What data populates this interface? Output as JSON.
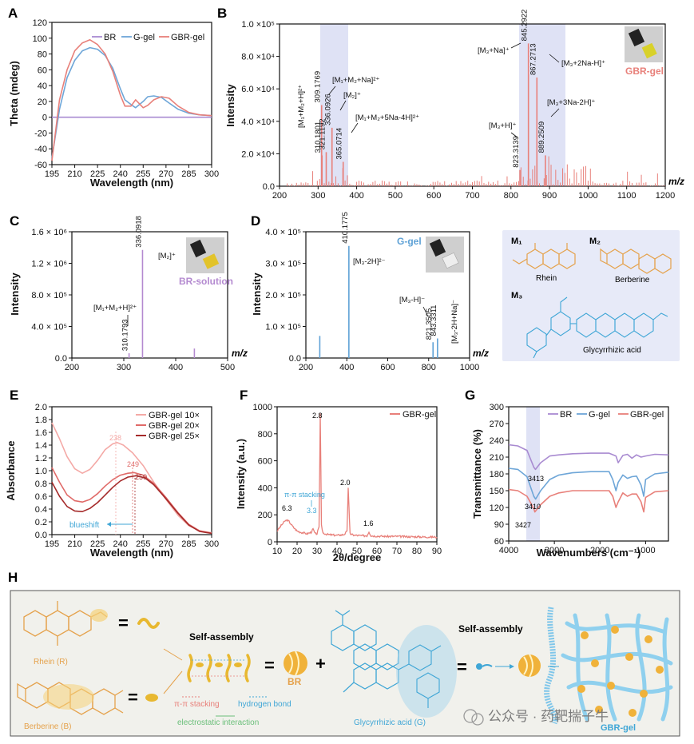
{
  "panels": {
    "A": {
      "label": "A",
      "chart_data": {
        "type": "line",
        "xlabel": "Wavelength (nm)",
        "ylabel": "Theta (mdeg)",
        "xlim": [
          195,
          300
        ],
        "ylim": [
          -60,
          120
        ],
        "xticks": [
          "195",
          "210",
          "225",
          "240",
          "255",
          "270",
          "285",
          "300"
        ],
        "yticks": [
          "-60",
          "-40",
          "-20",
          "0",
          "20",
          "40",
          "60",
          "80",
          "100",
          "120"
        ],
        "legend": [
          "BR",
          "G-gel",
          "GBR-gel"
        ],
        "colors": {
          "BR": "#a98bd1",
          "G-gel": "#6ea6d8",
          "GBR-gel": "#e8807a"
        },
        "series": [
          {
            "name": "BR",
            "x": [
              195,
              300
            ],
            "y": [
              0,
              0
            ]
          },
          {
            "name": "G-gel",
            "x": [
              195,
              200,
              205,
              210,
              215,
              220,
              225,
              230,
              235,
              240,
              243,
              247,
              250,
              255,
              258,
              262,
              267,
              272,
              278,
              285,
              292,
              300
            ],
            "y": [
              -52,
              10,
              50,
              72,
              84,
              88,
              86,
              78,
              62,
              36,
              22,
              16,
              12,
              20,
              26,
              27,
              25,
              18,
              10,
              5,
              3,
              2
            ]
          },
          {
            "name": "GBR-gel",
            "x": [
              195,
              200,
              205,
              210,
              215,
              220,
              225,
              230,
              235,
              240,
              243,
              247,
              250,
              255,
              258,
              262,
              267,
              272,
              278,
              285,
              292,
              300
            ],
            "y": [
              -55,
              22,
              60,
              84,
              94,
              98,
              92,
              80,
              58,
              28,
              14,
              14,
              22,
              12,
              15,
              22,
              26,
              24,
              14,
              6,
              3,
              2
            ]
          }
        ]
      }
    },
    "B": {
      "label": "B",
      "chart_data": {
        "type": "bar",
        "xlabel": "m/z",
        "ylabel": "Intensity",
        "xlim": [
          200,
          1200
        ],
        "ylim": [
          0,
          100000
        ],
        "xticks": [
          "200",
          "300",
          "400",
          "500",
          "600",
          "700",
          "800",
          "900",
          "1000",
          "1100",
          "1200"
        ],
        "yticks": [
          "0.0",
          "2.0 ×10⁴",
          "4.0 ×10⁴",
          "6.0 ×10⁴",
          "8.0 ×10⁴",
          "1.0 ×10⁵"
        ],
        "sample": "GBR-gel",
        "peaks": [
          {
            "mz": 310.1801,
            "y": 19000,
            "label": "310.1801"
          },
          {
            "mz": 309.1769,
            "y": 50000,
            "label": "309.1769"
          },
          {
            "mz": 321.1192,
            "y": 21000,
            "label": "321.1192"
          },
          {
            "mz": 336.0926,
            "y": 36000,
            "label": "336.0926"
          },
          {
            "mz": 365.0714,
            "y": 15000,
            "label": "365.0714"
          },
          {
            "mz": 823.3139,
            "y": 10000,
            "label": "823.3139"
          },
          {
            "mz": 845.2922,
            "y": 88000,
            "label": "845.2922"
          },
          {
            "mz": 867.2713,
            "y": 67000,
            "label": "867.2713"
          },
          {
            "mz": 889.2509,
            "y": 19000,
            "label": "889.2509"
          }
        ],
        "assignments": [
          "[M₁+M₂+H]²⁺",
          "[M₁+M₂+Na]²⁺",
          "[M₂]⁺",
          "[M₁+M₂+5Na-4H]²⁺",
          "[M₃+Na]⁺",
          "[M₃+2Na-H]⁺",
          "[M₃+H]⁺",
          "[M₃+3Na-2H]⁺"
        ],
        "color": "#e8807a"
      }
    },
    "C": {
      "label": "C",
      "chart_data": {
        "type": "bar",
        "xlabel": "m/z",
        "ylabel": "Intensity",
        "xlim": [
          200,
          500
        ],
        "ylim": [
          0,
          1600000
        ],
        "xticks": [
          "200",
          "300",
          "400",
          "500"
        ],
        "yticks": [
          "0.0",
          "4.0 × 10⁵",
          "8.0 × 10⁵",
          "1.2 × 10⁶",
          "1.6 × 10⁶"
        ],
        "sample": "BR-solution",
        "peaks": [
          {
            "mz": 310.1793,
            "y": 60000,
            "label": "310.1793"
          },
          {
            "mz": 336.0918,
            "y": 1370000,
            "label": "336.0918"
          },
          {
            "mz": 436,
            "y": 120000,
            "label": ""
          }
        ],
        "assignments": [
          "[M₂]⁺",
          "[M₁+M₂+H]²⁺"
        ],
        "color": "#b48ad0"
      }
    },
    "D": {
      "label": "D",
      "chart_data": {
        "type": "bar",
        "xlabel": "m/z",
        "ylabel": "Intensity",
        "xlim": [
          200,
          1000
        ],
        "ylim": [
          0,
          400000
        ],
        "xticks": [
          "200",
          "400",
          "600",
          "800",
          "1000"
        ],
        "yticks": [
          "0.0",
          "1.0 × 10⁵",
          "2.0 × 10⁵",
          "3.0 × 10⁵",
          "4.0 × 10⁵"
        ],
        "sample": "G-gel",
        "peaks": [
          {
            "mz": 268,
            "y": 70000,
            "label": ""
          },
          {
            "mz": 410.1775,
            "y": 355000,
            "label": "410.1775"
          },
          {
            "mz": 821.3505,
            "y": 50000,
            "label": "821.3505"
          },
          {
            "mz": 843.3311,
            "y": 62000,
            "label": "843.3311"
          }
        ],
        "assignments": [
          "[M₃-2H]²⁻",
          "[M₃-H]⁻",
          "[M₃-2H+Na]⁻"
        ],
        "color": "#5fa2d6"
      }
    },
    "structures": {
      "m1_label": "M₁",
      "m1_name": "Rhein",
      "m2_label": "M₂",
      "m2_name": "Berberine",
      "m3_label": "M₃",
      "m3_name": "Glycyrrhizic acid"
    },
    "E": {
      "label": "E",
      "chart_data": {
        "type": "line",
        "xlabel": "Wavelength (nm)",
        "ylabel": "Absorbance",
        "xlim": [
          195,
          300
        ],
        "ylim": [
          0,
          2.0
        ],
        "xticks": [
          "195",
          "210",
          "225",
          "240",
          "255",
          "270",
          "285",
          "300"
        ],
        "yticks": [
          "0.0",
          "0.2",
          "0.4",
          "0.6",
          "0.8",
          "1.0",
          "1.2",
          "1.4",
          "1.6",
          "1.8",
          "2.0"
        ],
        "legend": [
          "GBR-gel 10×",
          "GBR-gel 20×",
          "GBR-gel 25×"
        ],
        "peak_labels": [
          "238",
          "249",
          "250"
        ],
        "annotation": "blueshift",
        "colors": {
          "GBR-gel 10×": "#f4a9a6",
          "GBR-gel 20×": "#e06a68",
          "GBR-gel 25×": "#a52a2a"
        },
        "series": [
          {
            "name": "GBR-gel 10×",
            "x": [
              195,
              200,
              205,
              210,
              215,
              220,
              225,
              230,
              235,
              238,
              242,
              248,
              255,
              262,
              270,
              278,
              285,
              292,
              300
            ],
            "y": [
              1.75,
              1.5,
              1.22,
              1.03,
              0.96,
              1.02,
              1.16,
              1.33,
              1.42,
              1.44,
              1.4,
              1.28,
              1.08,
              0.82,
              0.55,
              0.3,
              0.14,
              0.06,
              0.03
            ]
          },
          {
            "name": "GBR-gel 20×",
            "x": [
              195,
              200,
              205,
              210,
              215,
              220,
              225,
              230,
              235,
              240,
              245,
              249,
              255,
              262,
              270,
              278,
              285,
              292,
              300
            ],
            "y": [
              1.05,
              0.82,
              0.62,
              0.53,
              0.51,
              0.55,
              0.64,
              0.76,
              0.86,
              0.93,
              0.96,
              0.97,
              0.93,
              0.8,
              0.58,
              0.34,
              0.16,
              0.06,
              0.02
            ]
          },
          {
            "name": "GBR-gel 25×",
            "x": [
              195,
              200,
              205,
              210,
              215,
              220,
              225,
              230,
              235,
              240,
              245,
              250,
              256,
              262,
              270,
              278,
              285,
              292,
              300
            ],
            "y": [
              0.82,
              0.6,
              0.44,
              0.37,
              0.36,
              0.41,
              0.5,
              0.62,
              0.74,
              0.84,
              0.9,
              0.92,
              0.89,
              0.78,
              0.56,
              0.33,
              0.15,
              0.05,
              0.02
            ]
          }
        ]
      }
    },
    "F": {
      "label": "F",
      "chart_data": {
        "type": "line",
        "xlabel": "2θ/degree",
        "ylabel": "Intensity (a.u.)",
        "xlim": [
          10,
          90
        ],
        "ylim": [
          0,
          1000
        ],
        "xticks": [
          "10",
          "20",
          "30",
          "40",
          "50",
          "60",
          "70",
          "80",
          "90"
        ],
        "yticks": [
          "0",
          "200",
          "400",
          "600",
          "800",
          "1000"
        ],
        "legend": [
          "GBR-gel"
        ],
        "peak_labels": [
          "2.8",
          "2.0",
          "1.6",
          "6.3",
          "3.3"
        ],
        "annotation": "π-π stacking",
        "color": "#e8807a",
        "series": [
          {
            "name": "GBR-gel",
            "x": [
              10,
              12,
              14,
              15,
              16,
              18,
              20,
              22,
              25,
              27,
              28,
              29,
              30,
              31,
              31.6,
              32.2,
              33,
              35,
              38,
              40,
              43,
              44,
              45,
              45.6,
              46.5,
              48,
              52,
              55,
              56,
              57,
              60,
              65,
              70,
              75,
              80,
              85,
              90
            ],
            "y": [
              80,
              120,
              155,
              160,
              150,
              110,
              80,
              70,
              60,
              70,
              95,
              60,
              60,
              110,
              950,
              120,
              65,
              55,
              50,
              48,
              52,
              60,
              80,
              400,
              60,
              50,
              45,
              45,
              75,
              45,
              42,
              40,
              40,
              38,
              37,
              36,
              35
            ]
          }
        ]
      }
    },
    "G": {
      "label": "G",
      "chart_data": {
        "type": "line",
        "xlabel": "Wavenumbers (cm⁻¹)",
        "ylabel": "Transmittance (%)",
        "xlim": [
          4000,
          500
        ],
        "ylim": [
          60,
          300
        ],
        "xticks": [
          "4000",
          "3000",
          "2000",
          "1000"
        ],
        "yticks": [
          "60",
          "90",
          "120",
          "150",
          "180",
          "210",
          "240",
          "270",
          "300"
        ],
        "legend": [
          "BR",
          "G-gel",
          "GBR-gel"
        ],
        "peak_labels": [
          "3413",
          "3410",
          "3427"
        ],
        "colors": {
          "BR": "#a98bd1",
          "G-gel": "#6ea6d8",
          "GBR-gel": "#e8807a"
        },
        "series": [
          {
            "name": "BR",
            "x": [
              4000,
              3800,
              3600,
              3450,
              3413,
              3300,
              3100,
              2900,
              2600,
              2200,
              1800,
              1650,
              1600,
              1500,
              1400,
              1300,
              1200,
              1100,
              1000,
              800,
              500
            ],
            "y": [
              232,
              230,
              222,
              192,
              188,
              200,
              212,
              214,
              216,
              217,
              217,
              212,
              200,
              213,
              215,
              208,
              214,
              210,
              212,
              215,
              214
            ]
          },
          {
            "name": "G-gel",
            "x": [
              4000,
              3800,
              3600,
              3450,
              3410,
              3300,
              3100,
              2900,
              2600,
              2200,
              1800,
              1720,
              1650,
              1600,
              1500,
              1400,
              1300,
              1200,
              1100,
              1040,
              1000,
              800,
              500
            ],
            "y": [
              190,
              188,
              175,
              140,
              135,
              150,
              170,
              178,
              182,
              184,
              184,
              170,
              150,
              165,
              178,
              172,
              175,
              176,
              160,
              140,
              170,
              180,
              183
            ]
          },
          {
            "name": "GBR-gel",
            "x": [
              4000,
              3800,
              3600,
              3450,
              3427,
              3300,
              3100,
              2900,
              2600,
              2200,
              1800,
              1720,
              1650,
              1600,
              1500,
              1400,
              1300,
              1200,
              1100,
              1040,
              1000,
              800,
              500
            ],
            "y": [
              152,
              150,
              140,
              118,
              112,
              125,
              140,
              146,
              150,
              150,
              150,
              140,
              120,
              130,
              146,
              140,
              144,
              144,
              130,
              112,
              138,
              148,
              150
            ]
          }
        ]
      }
    },
    "H": {
      "label": "H",
      "rhein": "Rhein (R)",
      "berberine": "Berberine (B)",
      "self_assembly_1": "Self-assembly",
      "self_assembly_2": "Self-assembly",
      "br": "BR",
      "pi_stacking": "π-π stacking",
      "hbond": "hydrogen bond",
      "electrostatic": "electrostatic interaction",
      "glycyrrhizic": "Glycyrrhizic acid (G)",
      "gbr_gel": "GBR-gel",
      "equals": "=",
      "plus": "+"
    },
    "watermark": "公众号 · 药靶揣子牛",
    "colors": {
      "pink": "#e8807a",
      "blue": "#6ea6d8",
      "purple": "#a98bd1",
      "orange": "#e5a24c",
      "gold": "#e8b830",
      "cyan": "#3fa6d6",
      "lavender": "#dfe2f5"
    }
  }
}
